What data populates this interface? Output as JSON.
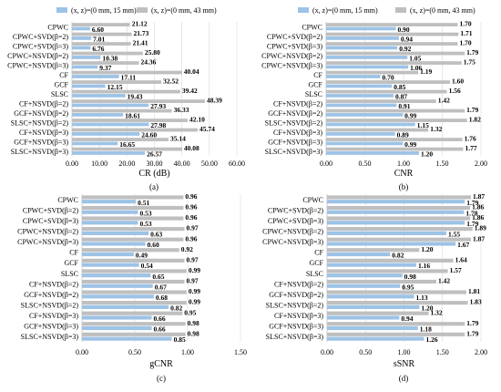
{
  "legend": {
    "series_a": "(x, z)=(0 mm, 15 mm)",
    "series_b": "(x, z)=(0 mm, 43 mm)",
    "color_a": "#9dc3e6",
    "color_b": "#bfbfbf"
  },
  "chart_data": [
    {
      "type": "bar",
      "id": "a",
      "orientation": "horizontal",
      "panel_label": "(a)",
      "xlabel": "CR (dB)",
      "xlim": [
        0,
        60
      ],
      "ticks": [
        "0.00",
        "10.00",
        "20.00",
        "30.00",
        "40.00",
        "50.00",
        "60.00"
      ],
      "grid": true,
      "categories": [
        "CPWC",
        "CPWC+SVD(β=2)",
        "CPWC+SVD(β=3)",
        "CPWC+NSVD(β=2)",
        "CPWC+NSVD(β=3)",
        "CF",
        "GCF",
        "SLSC",
        "CF+NSVD(β=2)",
        "GCF+NSVD(β=2)",
        "SLSC+NSVD(β=2)",
        "CF+NSVD(β=3)",
        "GCF+NSVD(β=3)",
        "SLSC+NSVD(β=3)"
      ],
      "series": [
        {
          "name": "(x, z)=(0 mm, 15 mm)",
          "values": [
            6.6,
            7.01,
            6.76,
            10.38,
            9.37,
            17.11,
            12.15,
            19.43,
            27.93,
            18.61,
            27.98,
            24.6,
            16.65,
            26.57
          ],
          "labels": [
            "6.60",
            "7.01",
            "6.76",
            "10.38",
            "9.37",
            "17.11",
            "12.15",
            "19.43",
            "27.93",
            "18.61",
            "27.98",
            "24.60",
            "16.65",
            "26.57"
          ]
        },
        {
          "name": "(x, z)=(0 mm, 43 mm)",
          "values": [
            21.12,
            21.73,
            21.41,
            25.8,
            24.36,
            40.04,
            32.52,
            39.42,
            48.39,
            36.33,
            42.1,
            45.74,
            35.14,
            40.08
          ],
          "labels": [
            "21.12",
            "21.73",
            "21.41",
            "25.80",
            "24.36",
            "40.04",
            "32.52",
            "39.42",
            "48.39",
            "36.33",
            "42.10",
            "45.74",
            "35.14",
            "40.08"
          ]
        }
      ]
    },
    {
      "type": "bar",
      "id": "b",
      "orientation": "horizontal",
      "panel_label": "(b)",
      "xlabel": "CNR",
      "xlim": [
        0,
        2
      ],
      "ticks": [
        "0.00",
        "0.50",
        "1.00",
        "1.50",
        "2.00"
      ],
      "grid": true,
      "categories": [
        "CPWC",
        "CPWC+SVD(β=2)",
        "CPWC+SVD(β=3)",
        "CPWC+NSVD(β=2)",
        "CPWC+NSVD(β=3)",
        "CF",
        "GCF",
        "SLSC",
        "CF+NSVD(β=2)",
        "GCF+NSVD(β=2)",
        "SLSC+NSVD(β=2)",
        "CF+NSVD(β=3)",
        "GCF+NSVD(β=3)",
        "SLSC+NSVD(β=3)"
      ],
      "series": [
        {
          "name": "(x, z)=(0 mm, 15 mm)",
          "values": [
            0.9,
            0.94,
            0.92,
            1.05,
            1.06,
            0.7,
            0.85,
            0.87,
            0.91,
            0.99,
            1.15,
            0.89,
            0.99,
            1.2
          ],
          "labels": [
            "0.90",
            "0.94",
            "0.92",
            "1.05",
            "1.06",
            "0.70",
            "0.85",
            "0.87",
            "0.91",
            "0.99",
            "1.15",
            "0.89",
            "0.99",
            "1.20"
          ]
        },
        {
          "name": "(x, z)=(0 mm, 43 mm)",
          "values": [
            1.7,
            1.71,
            1.7,
            1.79,
            1.75,
            1.19,
            1.6,
            1.56,
            1.42,
            1.79,
            1.82,
            1.32,
            1.76,
            1.77
          ],
          "labels": [
            "1.70",
            "1.71",
            "1.70",
            "1.79",
            "1.75",
            "1.19",
            "1.60",
            "1.56",
            "1.42",
            "1.79",
            "1.82",
            "1.32",
            "1.76",
            "1.77"
          ]
        }
      ]
    },
    {
      "type": "bar",
      "id": "c",
      "orientation": "horizontal",
      "panel_label": "(c)",
      "xlabel": "gCNR",
      "xlim": [
        0,
        1.5
      ],
      "ticks": [
        "0.00",
        "0.50",
        "1.00",
        "1.50"
      ],
      "grid": true,
      "categories": [
        "CPWC",
        "CPWC+SVD(β=2)",
        "CPWC+SVD(β=3)",
        "CPWC+NSVD(β=2)",
        "CPWC+NSVD(β=3)",
        "CF",
        "GCF",
        "SLSC",
        "CF+NSVD(β=2)",
        "GCF+NSVD(β=2)",
        "SLSC+NSVD(β=2)",
        "CF+NSVD(β=3)",
        "GCF+NSVD(β=3)",
        "SLSC+NSVD(β=3)"
      ],
      "series": [
        {
          "name": "(x, z)=(0 mm, 15 mm)",
          "values": [
            0.51,
            0.53,
            0.53,
            0.63,
            0.6,
            0.49,
            0.54,
            0.65,
            0.67,
            0.68,
            0.82,
            0.66,
            0.66,
            0.85
          ],
          "labels": [
            "0.51",
            "0.53",
            "0.53",
            "0.63",
            "0.60",
            "0.49",
            "0.54",
            "0.65",
            "0.67",
            "0.68",
            "0.82",
            "0.66",
            "0.66",
            "0.85"
          ]
        },
        {
          "name": "(x, z)=(0 mm, 43 mm)",
          "values": [
            0.96,
            0.96,
            0.96,
            0.97,
            0.96,
            0.92,
            0.97,
            0.99,
            0.97,
            0.99,
            0.99,
            0.95,
            0.98,
            0.98
          ],
          "labels": [
            "0.96",
            "0.96",
            "0.96",
            "0.97",
            "0.96",
            "0.92",
            "0.97",
            "0.99",
            "0.97",
            "0.99",
            "0.99",
            "0.95",
            "0.98",
            "0.98"
          ]
        }
      ]
    },
    {
      "type": "bar",
      "id": "d",
      "orientation": "horizontal",
      "panel_label": "(d)",
      "xlabel": "sSNR",
      "xlim": [
        0,
        2
      ],
      "ticks": [
        "0.00",
        "0.50",
        "1.00",
        "1.50",
        "2.00"
      ],
      "grid": true,
      "categories": [
        "CPWC",
        "CPWC+SVD(β=2)",
        "CPWC+SVD(β=3)",
        "CPWC+NSVD(β=2)",
        "CPWC+NSVD(β=3)",
        "CF",
        "GCF",
        "SLSC",
        "CF+NSVD(β=2)",
        "GCF+NSVD(β=2)",
        "SLSC+NSVD(β=2)",
        "CF+NSVD(β=3)",
        "GCF+NSVD(β=3)",
        "SLSC+NSVD(β=3)"
      ],
      "series": [
        {
          "name": "(x, z)=(0 mm, 15 mm)",
          "values": [
            1.79,
            1.78,
            1.79,
            1.55,
            1.67,
            0.82,
            1.16,
            0.98,
            0.95,
            1.13,
            1.2,
            0.94,
            1.18,
            1.26
          ],
          "labels": [
            "1.79",
            "1.78",
            "1.79",
            "1.55",
            "1.67",
            "0.82",
            "1.16",
            "0.98",
            "0.95",
            "1.13",
            "1.20",
            "0.94",
            "1.18",
            "1.26"
          ]
        },
        {
          "name": "(x, z)=(0 mm, 43 mm)",
          "values": [
            1.87,
            1.86,
            1.86,
            1.89,
            1.87,
            1.2,
            1.64,
            1.57,
            1.42,
            1.81,
            1.83,
            1.32,
            1.79,
            1.79
          ],
          "labels": [
            "1.87",
            "1.86",
            "1.86",
            "1.89",
            "1.87",
            "1.20",
            "1.64",
            "1.57",
            "1.42",
            "1.81",
            "1.83",
            "1.32",
            "1.79",
            "1.79"
          ]
        }
      ]
    }
  ]
}
